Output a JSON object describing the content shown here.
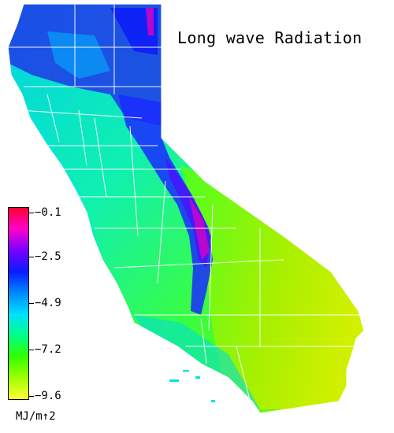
{
  "title": "Long wave Radiation",
  "legend": {
    "ticks": [
      "−0.1",
      "−2.5",
      "−4.9",
      "−7.2",
      "−9.6"
    ],
    "units": "MJ/m↑2",
    "colors": [
      "#ff0033",
      "#ff00cc",
      "#7a00ff",
      "#0a1bff",
      "#0088ff",
      "#00e0ff",
      "#00ff88",
      "#30ff00",
      "#a0ff00",
      "#ffff33"
    ]
  },
  "map": {
    "region": "California",
    "colors": {
      "sierra_high": "#2a25ff",
      "sierra_peak": "#e000c0",
      "north_cool": "#1230e0",
      "coast_cyan": "#00e6e0",
      "valley": "#10f0a0",
      "desert_green": "#50ff20",
      "desert_yellow": "#c8f000",
      "boundary": "#ffffff"
    }
  }
}
